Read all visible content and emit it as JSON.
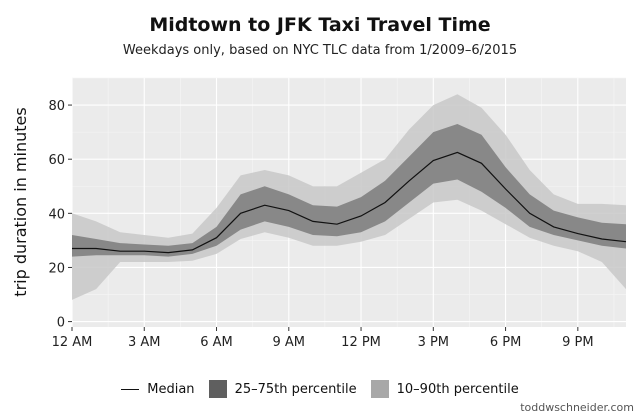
{
  "chart_data": {
    "type": "area",
    "title": "Midtown to JFK Taxi Travel Time",
    "subtitle": "Weekdays only, based on NYC TLC data from 1/2009–6/2015",
    "xlabel": "",
    "ylabel": "trip duration in minutes",
    "xlim": [
      0,
      23
    ],
    "ylim": [
      -2,
      90
    ],
    "x_ticks": [
      0,
      3,
      6,
      9,
      12,
      15,
      18,
      21
    ],
    "x_tick_labels": [
      "12 AM",
      "3 AM",
      "6 AM",
      "9 AM",
      "12 PM",
      "3 PM",
      "6 PM",
      "9 PM"
    ],
    "y_ticks": [
      0,
      20,
      40,
      60,
      80
    ],
    "y_tick_labels": [
      "0",
      "20",
      "40",
      "60",
      "80"
    ],
    "grid": true,
    "legend_position": "bottom",
    "x": [
      0,
      1,
      2,
      3,
      4,
      5,
      6,
      7,
      8,
      9,
      10,
      11,
      12,
      13,
      14,
      15,
      16,
      17,
      18,
      19,
      20,
      21,
      22,
      23
    ],
    "series": [
      {
        "name": "Median",
        "kind": "line",
        "color": "#111111",
        "values": [
          27,
          27,
          26,
          26,
          25.5,
          26.5,
          31,
          40,
          43,
          41,
          37,
          36,
          39,
          44,
          52,
          59.5,
          62.5,
          58.5,
          49,
          40,
          35,
          32.5,
          30.5,
          29.5
        ]
      },
      {
        "name": "25–75th percentile",
        "kind": "band",
        "color": "#707070",
        "lower": [
          24,
          24.5,
          24.5,
          24.5,
          24,
          25,
          28,
          34,
          37,
          35,
          32,
          31.5,
          33,
          37,
          44,
          51,
          52.5,
          48,
          42,
          35,
          32,
          30,
          28,
          27
        ],
        "upper": [
          32,
          30.5,
          29,
          28.5,
          28,
          29,
          35,
          47,
          50,
          47,
          43,
          42.5,
          46,
          52,
          61,
          70,
          73,
          69,
          57,
          47,
          41,
          38.5,
          36.5,
          36
        ]
      },
      {
        "name": "10–90th percentile",
        "kind": "band",
        "color": "#c8c8c8",
        "lower": [
          8,
          12,
          22,
          22,
          22,
          22.5,
          25,
          30.5,
          33,
          31,
          28,
          28,
          29.5,
          32,
          38,
          44,
          45,
          41,
          36,
          31,
          28,
          26,
          22,
          12
        ],
        "upper": [
          40,
          37,
          33,
          32,
          31,
          32.5,
          42,
          54,
          56,
          54,
          50,
          50,
          55,
          60,
          71,
          80,
          84,
          79,
          69,
          56,
          47,
          43.5,
          43.5,
          43
        ]
      }
    ]
  },
  "legend": {
    "median_label": "Median",
    "iqr_label": "25–75th percentile",
    "p90_label": "10–90th percentile"
  },
  "credit": "toddwschneider.com"
}
